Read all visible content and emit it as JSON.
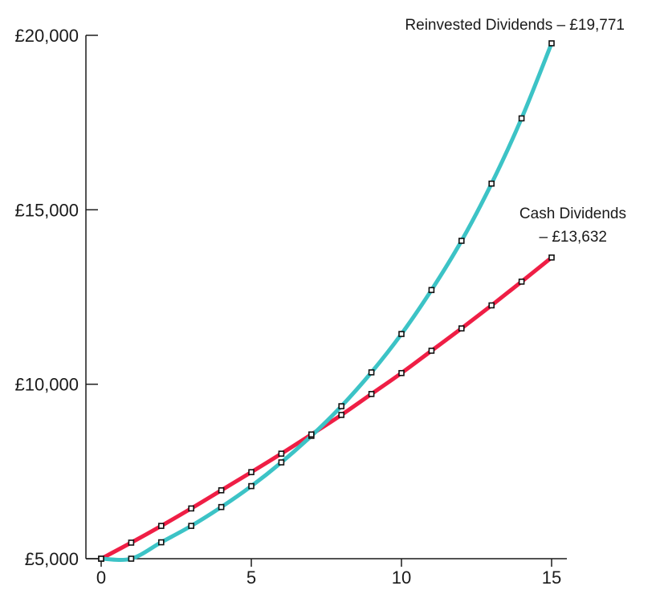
{
  "chart_data": {
    "type": "line",
    "x": [
      0,
      1,
      2,
      3,
      4,
      5,
      6,
      7,
      8,
      9,
      10,
      11,
      12,
      13,
      14,
      15
    ],
    "series": [
      {
        "name": "Reinvested Dividends",
        "color": "#3cc3c6",
        "values": [
          5000,
          5000,
          5470,
          5940,
          6480,
          7080,
          7760,
          8520,
          9370,
          10340,
          11440,
          12700,
          14110,
          15750,
          17620,
          19771
        ]
      },
      {
        "name": "Cash Dividends",
        "color": "#ef1e45",
        "values": [
          5000,
          5460,
          5940,
          6440,
          6960,
          7480,
          8010,
          8560,
          9120,
          9720,
          10320,
          10960,
          11600,
          12260,
          12940,
          13632
        ]
      }
    ],
    "annotations": [
      {
        "line1": "Reinvested Dividends – £19,771",
        "line2": ""
      },
      {
        "line1": "Cash Dividends",
        "line2": "– £13,632"
      }
    ],
    "xticks": [
      0,
      5,
      10,
      15
    ],
    "xtick_labels": [
      "0",
      "5",
      "10",
      "15"
    ],
    "yticks": [
      5000,
      10000,
      15000,
      20000
    ],
    "ytick_labels": [
      "£5,000",
      "£10,000",
      "£15,000",
      "£20,000"
    ],
    "xlim": [
      0,
      15
    ],
    "ylim": [
      5000,
      20000
    ],
    "grid": false,
    "legend": "none"
  }
}
